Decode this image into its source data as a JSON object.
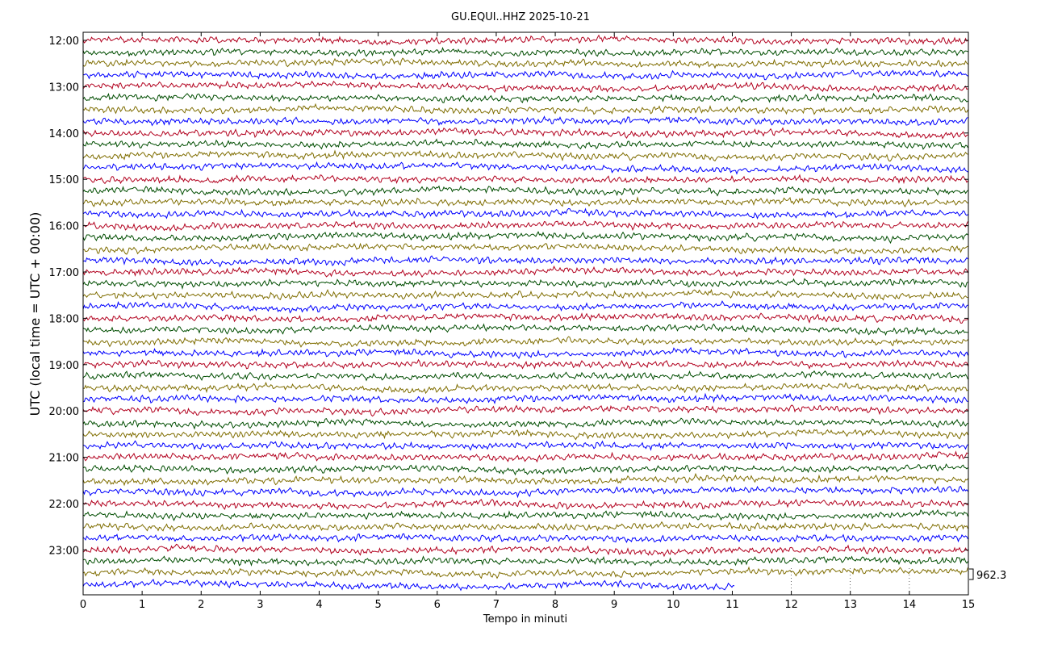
{
  "chart_data": {
    "type": "line",
    "title": "GU.EQUI..HHZ 2025-10-21",
    "xlabel": "Tempo in minuti",
    "ylabel": "UTC (local time = UTC + 00:00)",
    "xlim": [
      0,
      15
    ],
    "x_ticks": [
      "0",
      "1",
      "2",
      "3",
      "4",
      "5",
      "6",
      "7",
      "8",
      "9",
      "10",
      "11",
      "12",
      "13",
      "14",
      "15"
    ],
    "y_ticks": [
      "12:00",
      "13:00",
      "14:00",
      "15:00",
      "16:00",
      "17:00",
      "18:00",
      "19:00",
      "20:00",
      "21:00",
      "22:00",
      "23:00"
    ],
    "rows_per_hour": 4,
    "row_start": "12:00",
    "row_end": "23:45",
    "last_row_end_minute": 11.05,
    "scale_value": "962.3",
    "line_colors": [
      "#b2001e",
      "#004d00",
      "#7f6d00",
      "#0000ff"
    ],
    "grid": "dotted vertical lines after data end"
  }
}
